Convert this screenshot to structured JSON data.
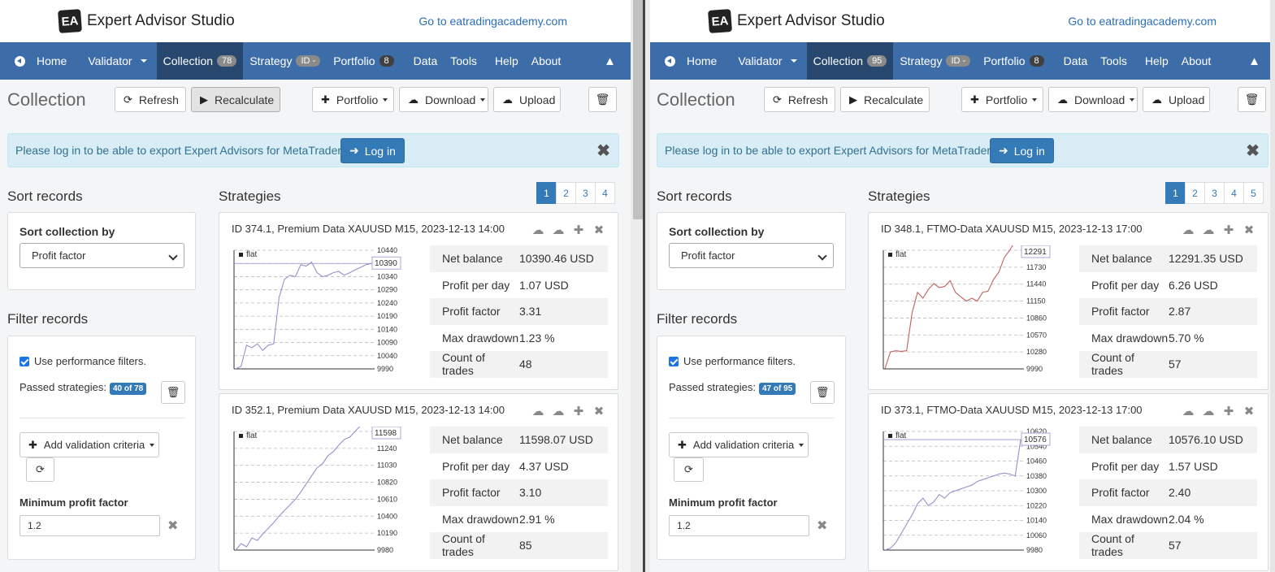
{
  "panes": [
    {
      "app_title": "Expert Advisor Studio",
      "logo_text": "EA",
      "top_link": "Go to eatradingacademy.com",
      "nav": {
        "home": "Home",
        "validator": "Validator",
        "collection": "Collection",
        "collection_count": "78",
        "strategy": "Strategy",
        "strategy_id": "ID -",
        "portfolio": "Portfolio",
        "portfolio_count": "8",
        "data": "Data",
        "tools": "Tools",
        "help": "Help",
        "about": "About"
      },
      "page_title": "Collection",
      "toolbar": {
        "refresh": "Refresh",
        "recalculate": "Recalculate",
        "portfolio": "Portfolio",
        "download": "Download",
        "upload": "Upload"
      },
      "alert": {
        "text": "Please log in to be able to export Expert Advisors for MetaTrader!",
        "login": "Log in"
      },
      "sort": {
        "title": "Sort records",
        "label": "Sort collection by",
        "selected": "Profit factor"
      },
      "filter": {
        "title": "Filter records",
        "use_filters": "Use performance filters.",
        "passed_label": "Passed strategies:",
        "passed_badge": "40 of 78",
        "add_criteria": "Add validation criteria",
        "min_pf_label": "Minimum profit factor",
        "min_pf_value": "1.2"
      },
      "strategies_title": "Strategies",
      "pages": [
        "1",
        "2",
        "3",
        "4"
      ],
      "cards": [
        {
          "title": "ID 374.1, Premium Data XAUUSD M15, 2023-12-13 14:00",
          "legend": "flat",
          "badge": "10390",
          "ticks": [
            "10440",
            "10390",
            "10340",
            "10290",
            "10240",
            "10190",
            "10140",
            "10090",
            "10040",
            "9990"
          ],
          "series": [
            9990,
            10000,
            10080,
            10070,
            10085,
            10060,
            10080,
            10085,
            10260,
            10330,
            10345,
            10340,
            10385,
            10380,
            10395,
            10355,
            10340,
            10345,
            10355,
            10360,
            10345,
            10355,
            10365,
            10375,
            10385,
            10390
          ],
          "metrics": [
            {
              "label": "Net balance",
              "value": "10390.46 USD"
            },
            {
              "label": "Profit per day",
              "value": "1.07 USD"
            },
            {
              "label": "Profit factor",
              "value": "3.31"
            },
            {
              "label": "Max drawdown",
              "value": "1.23 %"
            },
            {
              "label": "Count of trades",
              "value": "48"
            }
          ]
        },
        {
          "title": "ID 352.1, Premium Data XAUUSD M15, 2023-12-13 14:00",
          "legend": "flat",
          "badge": "11598",
          "ticks": [
            "11450",
            "11240",
            "11030",
            "10820",
            "10610",
            "10400",
            "10190",
            "9980"
          ],
          "series": [
            9980,
            10060,
            10020,
            10130,
            10100,
            10180,
            10250,
            10320,
            10400,
            10470,
            10540,
            10610,
            10700,
            10800,
            10900,
            11000,
            11050,
            11150,
            11200,
            11280,
            11350,
            11380,
            11450,
            11520,
            11560,
            11598
          ],
          "metrics": [
            {
              "label": "Net balance",
              "value": "11598.07 USD"
            },
            {
              "label": "Profit per day",
              "value": "4.37 USD"
            },
            {
              "label": "Profit factor",
              "value": "3.10"
            },
            {
              "label": "Max drawdown",
              "value": "2.91 %"
            },
            {
              "label": "Count of trades",
              "value": "85"
            }
          ]
        }
      ]
    },
    {
      "app_title": "Expert Advisor Studio",
      "logo_text": "EA",
      "top_link": "Go to eatradingacademy.com",
      "nav": {
        "home": "Home",
        "validator": "Validator",
        "collection": "Collection",
        "collection_count": "95",
        "strategy": "Strategy",
        "strategy_id": "ID -",
        "portfolio": "Portfolio",
        "portfolio_count": "8",
        "data": "Data",
        "tools": "Tools",
        "help": "Help",
        "about": "About"
      },
      "page_title": "Collection",
      "toolbar": {
        "refresh": "Refresh",
        "recalculate": "Recalculate",
        "portfolio": "Portfolio",
        "download": "Download",
        "upload": "Upload"
      },
      "alert": {
        "text": "Please log in to be able to export Expert Advisors for MetaTrader!",
        "login": "Log in"
      },
      "sort": {
        "title": "Sort records",
        "label": "Sort collection by",
        "selected": "Profit factor"
      },
      "filter": {
        "title": "Filter records",
        "use_filters": "Use performance filters.",
        "passed_label": "Passed strategies:",
        "passed_badge": "47 of 95",
        "add_criteria": "Add validation criteria",
        "min_pf_label": "Minimum profit factor",
        "min_pf_value": "1.2"
      },
      "strategies_title": "Strategies",
      "pages": [
        "1",
        "2",
        "3",
        "4",
        "5"
      ],
      "cards": [
        {
          "title": "ID 348.1, FTMO-Data XAUUSD M15, 2023-12-13 17:00",
          "legend": "flat",
          "badge": "12291",
          "ticks": [
            "12020",
            "11730",
            "11440",
            "11150",
            "10860",
            "10570",
            "10280",
            "9990"
          ],
          "series": [
            9990,
            10280,
            10300,
            10290,
            10300,
            10950,
            11300,
            11200,
            11350,
            11450,
            11380,
            11400,
            11500,
            11300,
            11220,
            11150,
            11200,
            11150,
            11300,
            11320,
            11520,
            11650,
            11900,
            12020,
            12200,
            12291
          ],
          "metrics": [
            {
              "label": "Net balance",
              "value": "12291.35 USD"
            },
            {
              "label": "Profit per day",
              "value": "6.26 USD"
            },
            {
              "label": "Profit factor",
              "value": "2.87"
            },
            {
              "label": "Max drawdown",
              "value": "5.70 %"
            },
            {
              "label": "Count of trades",
              "value": "57"
            }
          ]
        },
        {
          "title": "ID 373.1, FTMO-Data XAUUSD M15, 2023-12-13 17:00",
          "legend": "flat",
          "badge": "10576",
          "ticks": [
            "10620",
            "10540",
            "10460",
            "10380",
            "10300",
            "10220",
            "10140",
            "10060",
            "9980"
          ],
          "series": [
            9980,
            9990,
            10020,
            10070,
            10120,
            10170,
            10230,
            10260,
            10220,
            10240,
            10280,
            10260,
            10290,
            10300,
            10310,
            10320,
            10330,
            10350,
            10360,
            10370,
            10380,
            10390,
            10395,
            10390,
            10380,
            10576
          ],
          "metrics": [
            {
              "label": "Net balance",
              "value": "10576.10 USD"
            },
            {
              "label": "Profit per day",
              "value": "1.57 USD"
            },
            {
              "label": "Profit factor",
              "value": "2.40"
            },
            {
              "label": "Max drawdown",
              "value": "2.04 %"
            },
            {
              "label": "Count of trades",
              "value": "57"
            }
          ]
        }
      ]
    }
  ],
  "colors": {
    "nav": "#3d6da8",
    "nav_active": "#27476f",
    "alert_bg": "#d9edf7",
    "primary": "#337ab7",
    "equity_line": "#9a8fc9",
    "equity_line_alt": "#c06060"
  }
}
